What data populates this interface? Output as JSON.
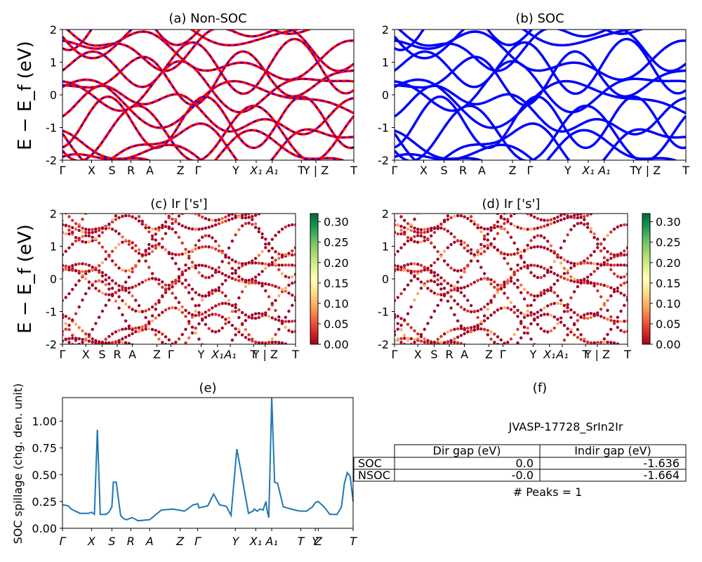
{
  "figure": {
    "ylabel_band": "E − E_f (eV)",
    "ylabel_spill": "SOC spillage (chg. den. unit)"
  },
  "kpath": {
    "labels": [
      "Γ",
      "X",
      "S",
      "R",
      "A",
      "Z",
      "Γ",
      "Y",
      "X₁",
      "A₁",
      "T",
      "Y | Z",
      "T"
    ],
    "fractions": [
      0,
      0.1,
      0.17,
      0.235,
      0.3,
      0.405,
      0.465,
      0.595,
      0.665,
      0.72,
      0.82,
      0.87,
      1.0
    ]
  },
  "band_panels": [
    {
      "id": "a",
      "title": "(a) Non-SOC",
      "style": "dashed",
      "colors": [
        "#ff0000",
        "#0000ff"
      ],
      "ylim": [
        -2,
        2
      ],
      "yticks": [
        -2,
        -1,
        0,
        1,
        2
      ]
    },
    {
      "id": "b",
      "title": "(b) SOC",
      "style": "solid",
      "colors": [
        "#0000ff"
      ],
      "ylim": [
        -2,
        2
      ],
      "yticks": [
        -2,
        -1,
        0,
        1,
        2
      ]
    },
    {
      "id": "c",
      "title": "(c)  Ir ['s']",
      "style": "scatter",
      "colors": [
        "#a50026"
      ],
      "ylim": [
        -2,
        2
      ],
      "yticks": [
        -2,
        -1,
        0,
        1,
        2
      ]
    },
    {
      "id": "d",
      "title": "(d) Ir ['s']",
      "style": "scatter",
      "colors": [
        "#a50026"
      ],
      "ylim": [
        -2,
        2
      ],
      "yticks": [
        -2,
        -1,
        0,
        1,
        2
      ]
    }
  ],
  "colorbar": {
    "ticks": [
      "0.00",
      "0.05",
      "0.10",
      "0.15",
      "0.20",
      "0.25",
      "0.30"
    ],
    "range": [
      0,
      0.32
    ],
    "colormap": "RdYlGn"
  },
  "chart_data": [
    {
      "type": "line",
      "panel": "e",
      "title": "(e)",
      "ylabel": "SOC spillage (chg. den. unit)",
      "xlabel": "",
      "ylim": [
        0,
        1.22
      ],
      "yticks": [
        "0.00",
        "0.25",
        "0.50",
        "0.75",
        "1.00"
      ],
      "xtick_labels": [
        "Γ",
        "X",
        "S",
        "R",
        "A",
        "Z",
        "Γ",
        "Y",
        "X₁",
        "A₁",
        "T",
        "Y",
        "Z",
        "T"
      ],
      "series": [
        {
          "color": "#1f77b4",
          "x": [
            0,
            0.02,
            0.03,
            0.06,
            0.09,
            0.1,
            0.11,
            0.12,
            0.13,
            0.15,
            0.16,
            0.17,
            0.175,
            0.185,
            0.2,
            0.21,
            0.22,
            0.24,
            0.26,
            0.3,
            0.34,
            0.38,
            0.4,
            0.42,
            0.43,
            0.44,
            0.45,
            0.455,
            0.465,
            0.47,
            0.5,
            0.52,
            0.54,
            0.555,
            0.56,
            0.565,
            0.58,
            0.6,
            0.64,
            0.655,
            0.66,
            0.67,
            0.68,
            0.69,
            0.7,
            0.705,
            0.71,
            0.72,
            0.73,
            0.74,
            0.76,
            0.8,
            0.82,
            0.84,
            0.86,
            0.87,
            0.88,
            0.9,
            0.92,
            0.945,
            0.96,
            0.97,
            0.98,
            0.99,
            1.0
          ],
          "values": [
            0.22,
            0.21,
            0.18,
            0.14,
            0.14,
            0.15,
            0.13,
            0.92,
            0.13,
            0.13,
            0.15,
            0.2,
            0.43,
            0.43,
            0.12,
            0.09,
            0.08,
            0.1,
            0.07,
            0.08,
            0.17,
            0.18,
            0.17,
            0.16,
            0.18,
            0.2,
            0.22,
            0.22,
            0.23,
            0.19,
            0.21,
            0.32,
            0.22,
            0.21,
            0.21,
            0.2,
            0.12,
            0.74,
            0.14,
            0.16,
            0.18,
            0.16,
            0.18,
            0.17,
            0.25,
            0.15,
            0.1,
            1.22,
            0.43,
            0.42,
            0.2,
            0.17,
            0.16,
            0.16,
            0.2,
            0.24,
            0.25,
            0.2,
            0.13,
            0.13,
            0.2,
            0.42,
            0.52,
            0.48,
            0.25
          ]
        }
      ]
    }
  ],
  "table": {
    "title": "(f)",
    "name": "JVASP-17728_SrIn2Ir",
    "col_headers": [
      "Dir gap (eV)",
      "Indir gap (eV)"
    ],
    "rows": [
      {
        "label": "SOC",
        "dir": "0.0",
        "indir": "-1.636"
      },
      {
        "label": "NSOC",
        "dir": "-0.0",
        "indir": "-1.664"
      }
    ],
    "footer": "# Peaks = 1"
  }
}
